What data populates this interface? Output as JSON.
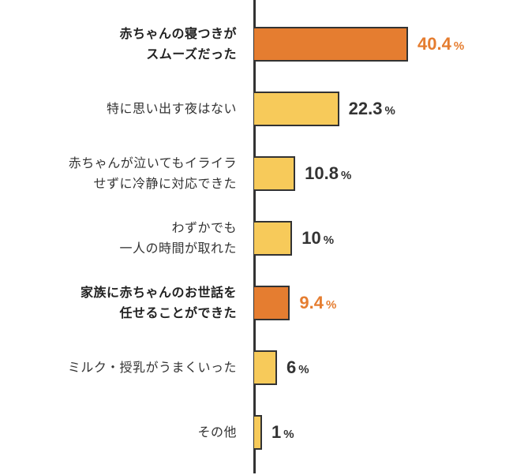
{
  "chart_data": {
    "type": "bar",
    "orientation": "horizontal",
    "categories": [
      [
        "赤ちゃんの寝つきが",
        "スムーズだった"
      ],
      [
        "特に思い出す夜はない"
      ],
      [
        "赤ちゃんが泣いてもイライラ",
        "せずに冷静に対応できた"
      ],
      [
        "わずかでも",
        "一人の時間が取れた"
      ],
      [
        "家族に赤ちゃんのお世話を",
        "任せることができた"
      ],
      [
        "ミルク・授乳がうまくいった"
      ],
      [
        "その他"
      ]
    ],
    "values": [
      40.4,
      22.3,
      10.8,
      10,
      9.4,
      6,
      1
    ],
    "value_labels": [
      "40.4",
      "22.3",
      "10.8",
      "10",
      "9.4",
      "6",
      "1"
    ],
    "unit": "%",
    "highlighted": [
      true,
      false,
      false,
      false,
      true,
      false,
      false
    ],
    "colors": {
      "highlight": "#E57D30",
      "normal": "#F7CA5A",
      "outline": "#333333",
      "text": "#333333"
    },
    "xlim": [
      0,
      40.4
    ],
    "grid": false
  }
}
